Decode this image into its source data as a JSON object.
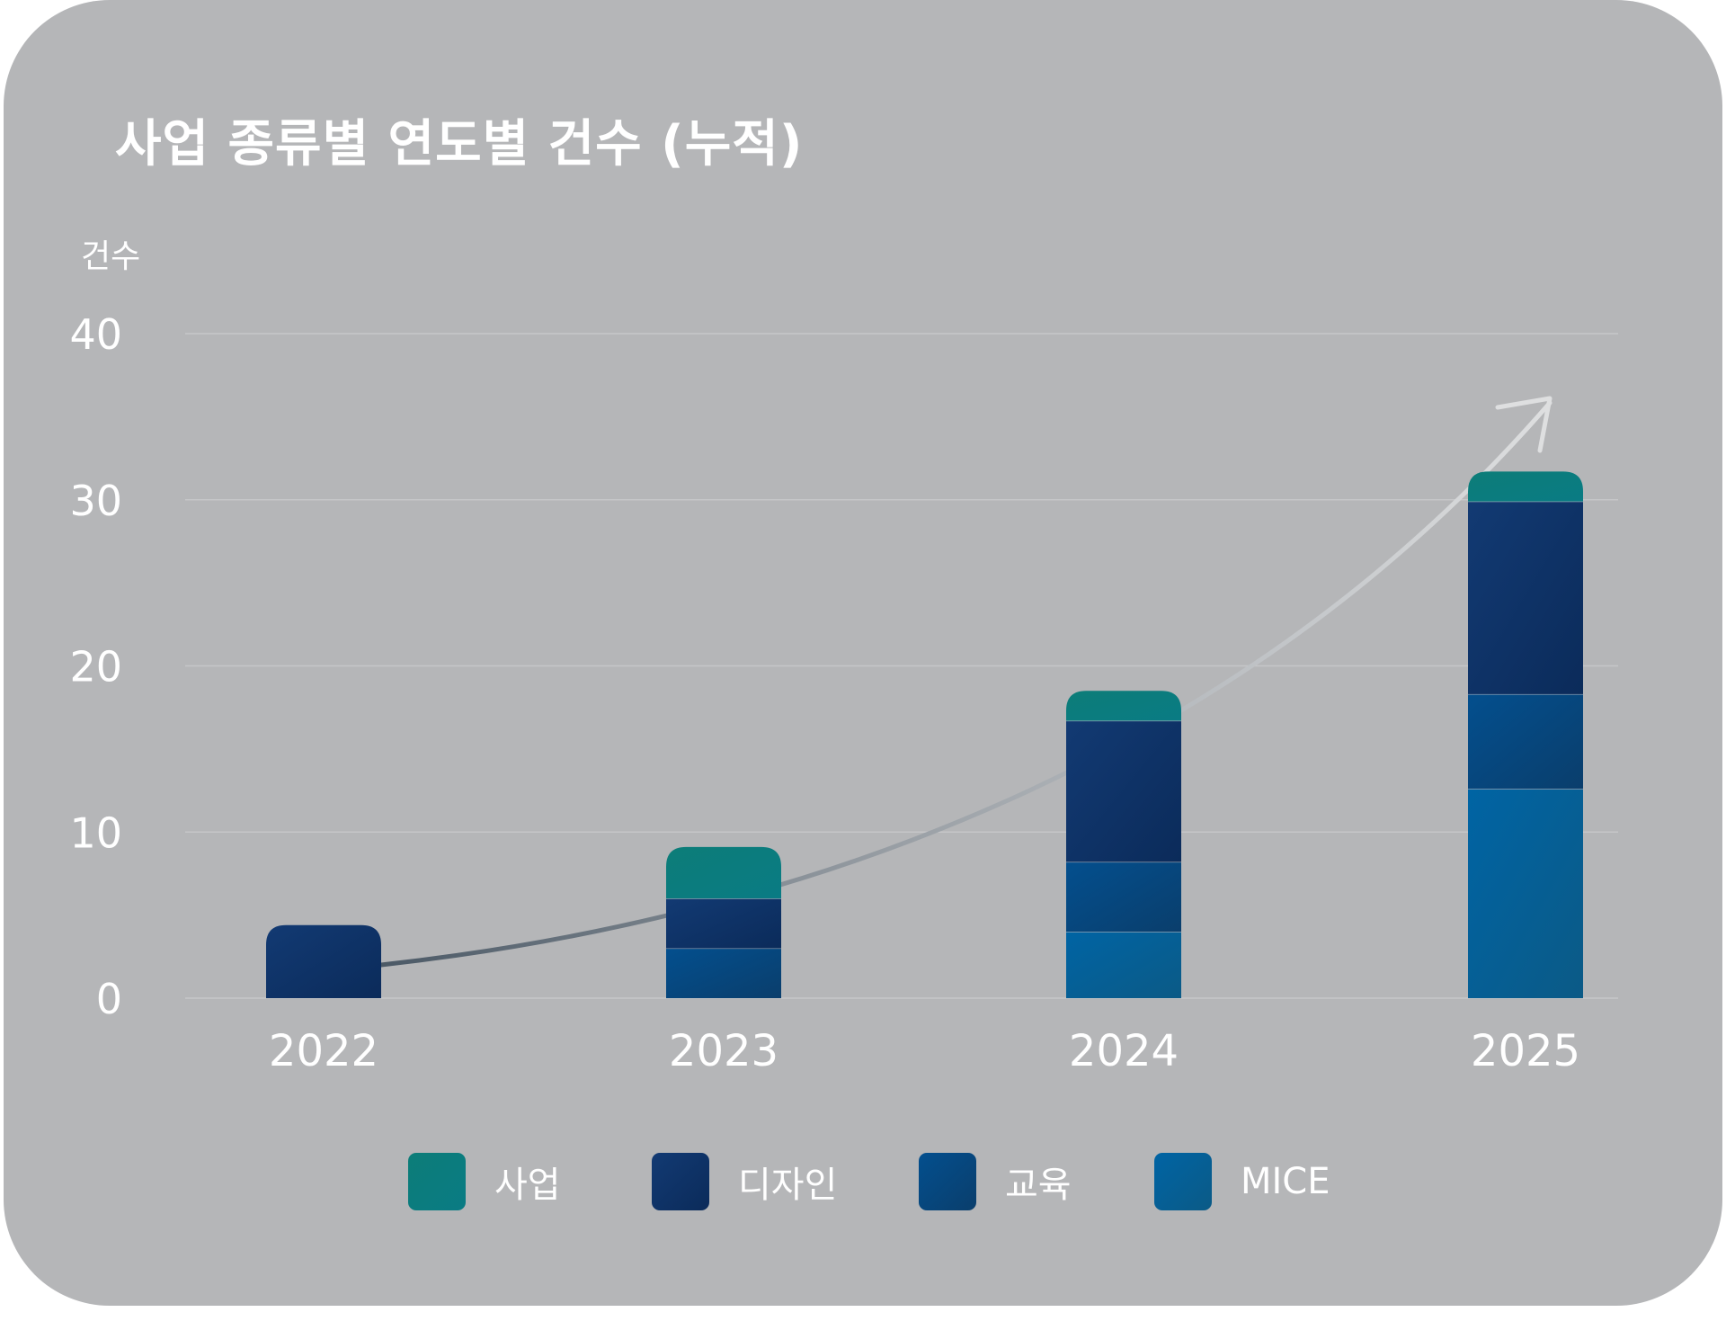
{
  "chart_data": {
    "type": "bar",
    "stacked": true,
    "title": "사업 종류별 연도별 건수 (누적)",
    "xlabel": "",
    "ylabel": "건수",
    "ylim": [
      0,
      40
    ],
    "yticks": [
      0,
      10,
      20,
      30,
      40
    ],
    "categories": [
      "2022",
      "2023",
      "2024",
      "2025"
    ],
    "series": [
      {
        "name": "MICE",
        "values": [
          0,
          0,
          4,
          12.6
        ]
      },
      {
        "name": "교육",
        "values": [
          0,
          3,
          4.2,
          5.7
        ]
      },
      {
        "name": "디자인",
        "values": [
          4.4,
          3,
          8.5,
          11.6
        ]
      },
      {
        "name": "사업",
        "values": [
          0,
          3.1,
          1.8,
          1.8
        ]
      }
    ],
    "legend_order": [
      "사업",
      "디자인",
      "교육",
      "MICE"
    ],
    "legend_position": "bottom",
    "trend_arrow": true,
    "grid": true
  },
  "colors": {
    "사업": [
      "#0c7d78",
      "#0a7b84"
    ],
    "디자인": [
      "#123a73",
      "#0b2b5a"
    ],
    "교육": [
      "#034f8e",
      "#0a3e6c"
    ],
    "MICE": [
      "#0064a4",
      "#0b5a86"
    ],
    "background": "#b5b6b8",
    "grid": "#c6c7c9"
  }
}
